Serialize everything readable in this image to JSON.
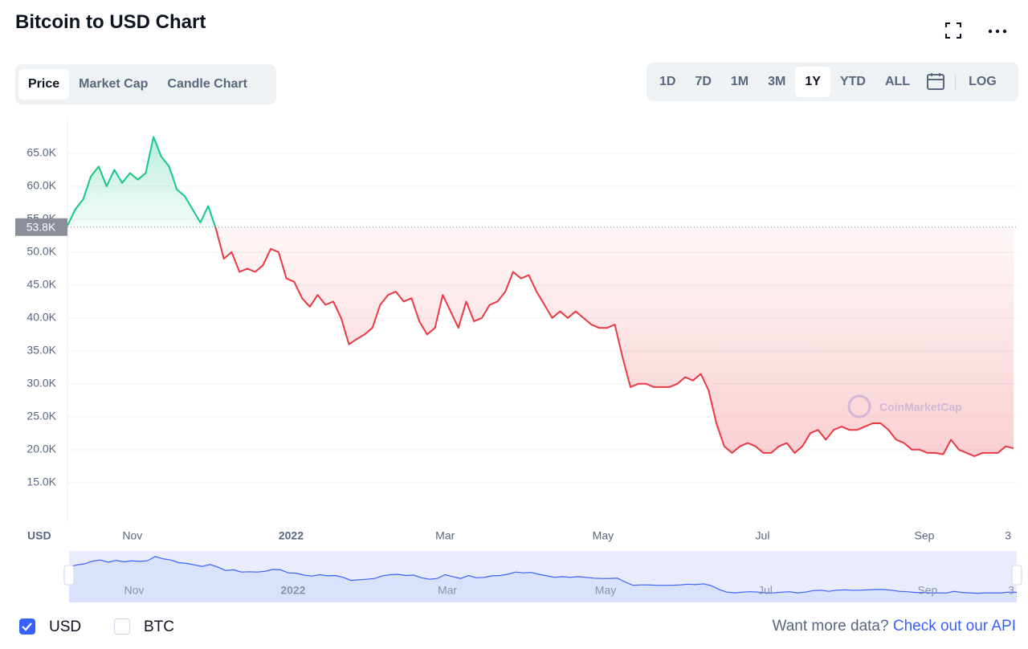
{
  "header": {
    "title": "Bitcoin to USD Chart"
  },
  "tabs": {
    "items": [
      "Price",
      "Market Cap",
      "Candle Chart"
    ],
    "selected": 0
  },
  "ranges": {
    "items": [
      "1D",
      "7D",
      "1M",
      "3M",
      "1Y",
      "YTD",
      "ALL"
    ],
    "selected": 4,
    "log": "LOG"
  },
  "chart_data": {
    "type": "line",
    "values": [
      54000,
      56500,
      58000,
      61500,
      63000,
      60000,
      62500,
      60500,
      62000,
      61000,
      62000,
      67500,
      64500,
      63000,
      59500,
      58500,
      56500,
      54500,
      57000,
      53500,
      49000,
      50000,
      47000,
      47500,
      47000,
      48000,
      50500,
      50000,
      46000,
      45500,
      43000,
      41700,
      43500,
      42000,
      42500,
      40000,
      36000,
      36800,
      37500,
      38500,
      42000,
      43500,
      44000,
      42500,
      43000,
      39500,
      37500,
      38500,
      43500,
      41000,
      38500,
      42500,
      39500,
      40000,
      42000,
      42500,
      44000,
      47000,
      46000,
      46500,
      44000,
      42000,
      40000,
      41000,
      40000,
      41000,
      40000,
      39000,
      38500,
      38500,
      39000,
      34000,
      29500,
      30000,
      30000,
      29500,
      29500,
      29500,
      30000,
      31000,
      30500,
      31500,
      29000,
      24000,
      20500,
      19500,
      20500,
      21000,
      20500,
      19500,
      19500,
      20500,
      21000,
      19500,
      20500,
      22500,
      23000,
      21500,
      23000,
      23500,
      23000,
      23000,
      23500,
      24000,
      24000,
      23000,
      21500,
      21000,
      20000,
      20000,
      19500,
      19500,
      19300,
      21500,
      20000,
      19500,
      19000,
      19500,
      19500,
      19500,
      20500,
      20200
    ],
    "color_above": "#16c784",
    "color_below": "#ea3943",
    "reference_line": {
      "value": 53800,
      "label": "53.8K"
    },
    "xlim": [
      0,
      121
    ],
    "xticks": [
      {
        "value": 8.3,
        "label": "Nov"
      },
      {
        "value": 28.6,
        "label": "2022"
      },
      {
        "value": 48.3,
        "label": "Mar"
      },
      {
        "value": 68.5,
        "label": "May"
      },
      {
        "value": 88.9,
        "label": "Jul"
      },
      {
        "value": 109.6,
        "label": "Sep"
      },
      {
        "value": 120.3,
        "label": "3"
      }
    ],
    "ylim": [
      9000,
      70600
    ],
    "yticks": [
      {
        "value": 15000,
        "label": "15.0K"
      },
      {
        "value": 20000,
        "label": "20.0K"
      },
      {
        "value": 25000,
        "label": "25.0K"
      },
      {
        "value": 30000,
        "label": "30.0K"
      },
      {
        "value": 35000,
        "label": "35.0K"
      },
      {
        "value": 40000,
        "label": "40.0K"
      },
      {
        "value": 45000,
        "label": "45.0K"
      },
      {
        "value": 50000,
        "label": "50.0K"
      },
      {
        "value": 55000,
        "label": "55.0K"
      },
      {
        "value": 60000,
        "label": "60.0K"
      },
      {
        "value": 65000,
        "label": "65.0K"
      }
    ],
    "grid": true,
    "y_unit_label": "USD",
    "watermark": "CoinMarketCap",
    "navigator_color": "#3861fb"
  },
  "currencies": {
    "items": [
      {
        "label": "USD",
        "checked": true
      },
      {
        "label": "BTC",
        "checked": false
      }
    ]
  },
  "footer": {
    "text": "Want more data?",
    "link": "Check out our API"
  }
}
